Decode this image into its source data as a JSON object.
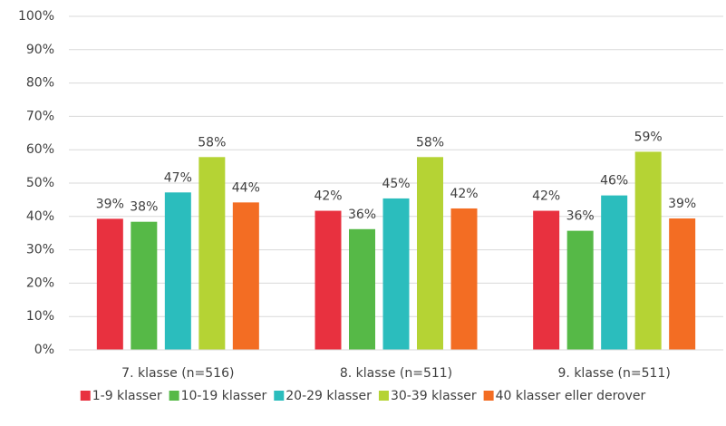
{
  "chart_data": {
    "type": "bar",
    "categories": [
      "7. klasse (n=516)",
      "8. klasse (n=511)",
      "9. klasse (n=511)"
    ],
    "series": [
      {
        "name": "1-9 klasser",
        "color": "#e8313f",
        "values": [
          39.3,
          41.7,
          41.7
        ],
        "value_labels": [
          "39%",
          "42%",
          "42%"
        ]
      },
      {
        "name": "10-19 klasser",
        "color": "#56b947",
        "values": [
          38.4,
          36.2,
          35.7
        ],
        "value_labels": [
          "38%",
          "36%",
          "36%"
        ]
      },
      {
        "name": "20-29 klasser",
        "color": "#2bbdbd",
        "values": [
          47.2,
          45.4,
          46.3
        ],
        "value_labels": [
          "47%",
          "45%",
          "46%"
        ]
      },
      {
        "name": "30-39 klasser",
        "color": "#b5d334",
        "values": [
          57.8,
          57.8,
          59.4
        ],
        "value_labels": [
          "58%",
          "58%",
          "59%"
        ]
      },
      {
        "name": "40 klasser eller derover",
        "color": "#f36d23",
        "values": [
          44.2,
          42.4,
          39.4
        ],
        "value_labels": [
          "44%",
          "42%",
          "39%"
        ]
      }
    ],
    "ylim": [
      0,
      100
    ],
    "yticks": [
      {
        "value": 0,
        "label": "0%"
      },
      {
        "value": 10,
        "label": "10%"
      },
      {
        "value": 20,
        "label": "20%"
      },
      {
        "value": 30,
        "label": "30%"
      },
      {
        "value": 40,
        "label": "40%"
      },
      {
        "value": 50,
        "label": "50%"
      },
      {
        "value": 60,
        "label": "60%"
      },
      {
        "value": 70,
        "label": "70%"
      },
      {
        "value": 80,
        "label": "80%"
      },
      {
        "value": 90,
        "label": "90%"
      },
      {
        "value": 100,
        "label": "100%"
      }
    ],
    "grid": true,
    "legend": "bottom"
  }
}
